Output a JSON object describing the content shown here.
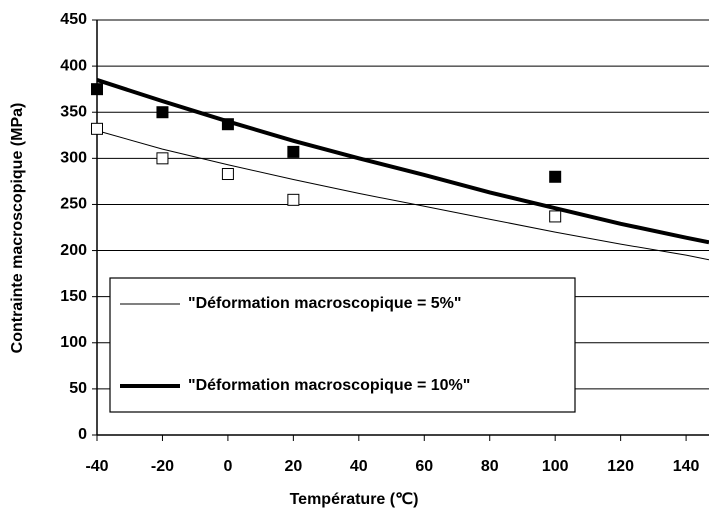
{
  "chart_data": {
    "type": "line",
    "xlabel": "Température (℃)",
    "ylabel": "Contrainte macroscopique (MPa)",
    "xlim": [
      -40,
      147
    ],
    "xticks": [
      -40,
      -20,
      0,
      20,
      40,
      60,
      80,
      100,
      120,
      140
    ],
    "ylim": [
      0,
      450
    ],
    "yticks": [
      0,
      50,
      100,
      150,
      200,
      250,
      300,
      350,
      400,
      450
    ],
    "grid": true,
    "legend": "lower-left",
    "series": [
      {
        "name": "\"Déformation macroscopique = 5%\"",
        "style": "line",
        "width": 1,
        "color": "#000000",
        "x": [
          -40,
          -20,
          0,
          20,
          40,
          60,
          80,
          100,
          120,
          140,
          147
        ],
        "values": [
          330,
          310,
          293,
          277,
          262,
          248,
          234,
          220,
          207,
          195,
          190
        ]
      },
      {
        "name": "\"Déformation macroscopique = 10%\"",
        "style": "line",
        "width": 4,
        "color": "#000000",
        "x": [
          -40,
          -20,
          0,
          20,
          40,
          60,
          80,
          100,
          120,
          140,
          147
        ],
        "values": [
          385,
          362,
          340,
          319,
          300,
          282,
          263,
          246,
          229,
          214,
          209
        ]
      },
      {
        "style": "marker",
        "fill": "#ffffff",
        "color": "#000000",
        "x": [
          -40,
          -20,
          0,
          20,
          100
        ],
        "values": [
          332,
          300,
          283,
          255,
          237
        ]
      },
      {
        "style": "marker",
        "fill": "#000000",
        "color": "#000000",
        "x": [
          -40,
          -20,
          0,
          20,
          100
        ],
        "values": [
          375,
          350,
          337,
          307,
          280
        ]
      }
    ]
  }
}
